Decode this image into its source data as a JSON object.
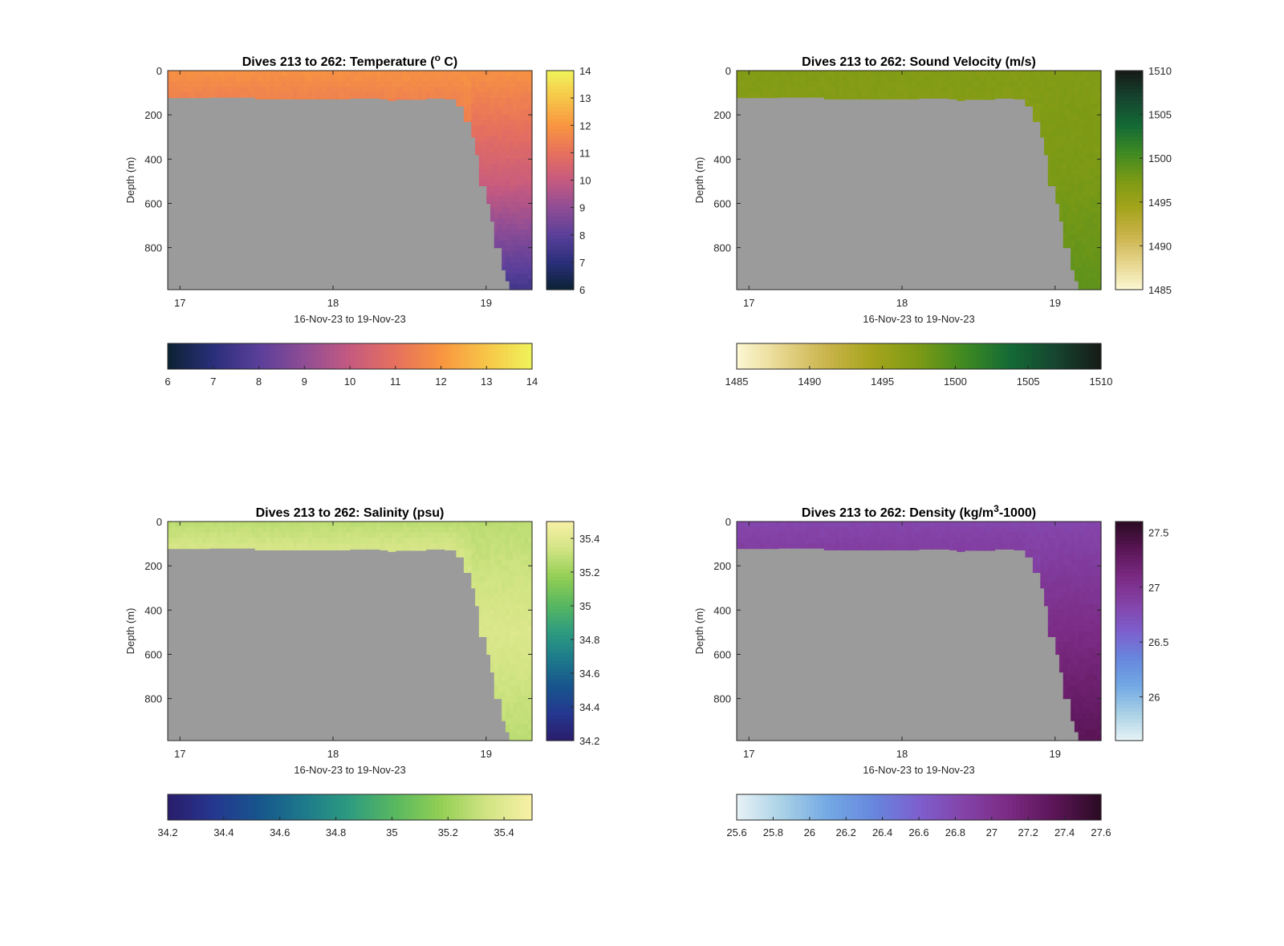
{
  "figure": {
    "background": "#ffffff",
    "mask_color": "#9b9b9b"
  },
  "chart_data": [
    {
      "id": "temperature",
      "type": "heatmap",
      "title": "Dives 213 to 262: Temperature (",
      "title_suffix": "o",
      "title_end": " C)",
      "xlabel": "16-Nov-23 to 19-Nov-23",
      "ylabel": "Depth (m)",
      "xlim": [
        16.92,
        19.3
      ],
      "ylim": [
        0,
        990
      ],
      "y_reversed": true,
      "xticks": [
        17,
        18,
        19
      ],
      "xticklabels": [
        "17",
        "18",
        "19"
      ],
      "yticks": [
        0,
        200,
        400,
        600,
        800
      ],
      "yticklabels": [
        "0",
        "200",
        "400",
        "600",
        "800"
      ],
      "colormap": [
        "#0b2233",
        "#2a2f7a",
        "#5a3f9a",
        "#8f4d95",
        "#c55a80",
        "#e6705e",
        "#f89540",
        "#f7c548",
        "#f0f35a"
      ],
      "clim": [
        6,
        14
      ],
      "colorbar_ticks": [
        6,
        7,
        8,
        9,
        10,
        11,
        12,
        13,
        14
      ],
      "colorbar_ticklabels": [
        "6",
        "7",
        "8",
        "9",
        "10",
        "11",
        "12",
        "13",
        "14"
      ],
      "profile": {
        "surface": 11.9,
        "shelf_bottom": 11.5,
        "deep_mid": 10.2,
        "deep_bottom": 7.5
      }
    },
    {
      "id": "sound_velocity",
      "type": "heatmap",
      "title": "Dives 213 to 262: Sound Velocity (m/s)",
      "xlabel": "16-Nov-23 to 19-Nov-23",
      "ylabel": "Depth (m)",
      "xlim": [
        16.92,
        19.3
      ],
      "ylim": [
        0,
        990
      ],
      "y_reversed": true,
      "xticks": [
        17,
        18,
        19
      ],
      "xticklabels": [
        "17",
        "18",
        "19"
      ],
      "yticks": [
        0,
        200,
        400,
        600,
        800
      ],
      "yticklabels": [
        "0",
        "200",
        "400",
        "600",
        "800"
      ],
      "colormap": [
        "#fdf8d4",
        "#e6d58c",
        "#c9b34a",
        "#a4a41b",
        "#7c9a15",
        "#3f8a22",
        "#136a35",
        "#164530",
        "#161a17"
      ],
      "clim": [
        1485,
        1510
      ],
      "colorbar_ticks": [
        1485,
        1490,
        1495,
        1500,
        1505,
        1510
      ],
      "colorbar_ticklabels": [
        "1485",
        "1490",
        "1495",
        "1500",
        "1505",
        "1510"
      ],
      "profile": {
        "surface": 1497.0,
        "shelf_bottom": 1496.8,
        "deep_mid": 1497.6,
        "deep_bottom": 1499.0
      }
    },
    {
      "id": "salinity",
      "type": "heatmap",
      "title": "Dives 213 to 262: Salinity (psu)",
      "xlabel": "16-Nov-23 to 19-Nov-23",
      "ylabel": "Depth (m)",
      "xlim": [
        16.92,
        19.3
      ],
      "ylim": [
        0,
        990
      ],
      "y_reversed": true,
      "xticks": [
        17,
        18,
        19
      ],
      "xticklabels": [
        "17",
        "18",
        "19"
      ],
      "yticks": [
        0,
        200,
        400,
        600,
        800
      ],
      "yticklabels": [
        "0",
        "200",
        "400",
        "600",
        "800"
      ],
      "colormap": [
        "#2a1c6b",
        "#25378f",
        "#17558d",
        "#1d7a8b",
        "#2e9c7f",
        "#59b85f",
        "#93cf55",
        "#d1e483",
        "#f8f0a6"
      ],
      "clim": [
        34.2,
        35.5
      ],
      "colorbar_ticks": [
        34.2,
        34.4,
        34.6,
        34.8,
        35,
        35.2,
        35.4
      ],
      "colorbar_ticklabels": [
        "34.2",
        "34.4",
        "34.6",
        "34.8",
        "35",
        "35.2",
        "35.4"
      ],
      "profile": {
        "surface": 35.28,
        "shelf_bottom": 35.36,
        "deep_mid": 35.38,
        "deep_bottom": 35.28
      }
    },
    {
      "id": "density",
      "type": "heatmap",
      "title": "Dives 213 to 262: Density (kg/m",
      "title_suffix": "3",
      "title_end": "-1000)",
      "xlabel": "16-Nov-23 to 19-Nov-23",
      "ylabel": "Depth (m)",
      "xlim": [
        16.92,
        19.3
      ],
      "ylim": [
        0,
        990
      ],
      "y_reversed": true,
      "xticks": [
        17,
        18,
        19
      ],
      "xticklabels": [
        "17",
        "18",
        "19"
      ],
      "yticks": [
        0,
        200,
        400,
        600,
        800
      ],
      "yticklabels": [
        "0",
        "200",
        "400",
        "600",
        "800"
      ],
      "colormap": [
        "#e8f3f6",
        "#a9d1e6",
        "#73a9e4",
        "#6787dd",
        "#7d5fce",
        "#8443a8",
        "#7a2a82",
        "#5a1556",
        "#2b0b23"
      ],
      "clim": [
        25.6,
        27.6
      ],
      "colorbar_ticks": [
        26,
        26.5,
        27,
        27.5
      ],
      "colorbar_ticklabels": [
        "26",
        "26.5",
        "27",
        "27.5"
      ],
      "hcolorbar_ticks": [
        25.6,
        25.8,
        26,
        26.2,
        26.4,
        26.6,
        26.8,
        27,
        27.2,
        27.4,
        27.6
      ],
      "hcolorbar_ticklabels": [
        "25.6",
        "25.8",
        "26",
        "26.2",
        "26.4",
        "26.6",
        "26.8",
        "27",
        "27.2",
        "27.4",
        "27.6"
      ],
      "profile": {
        "surface": 26.82,
        "shelf_bottom": 26.9,
        "deep_mid": 27.08,
        "deep_bottom": 27.35
      }
    }
  ]
}
